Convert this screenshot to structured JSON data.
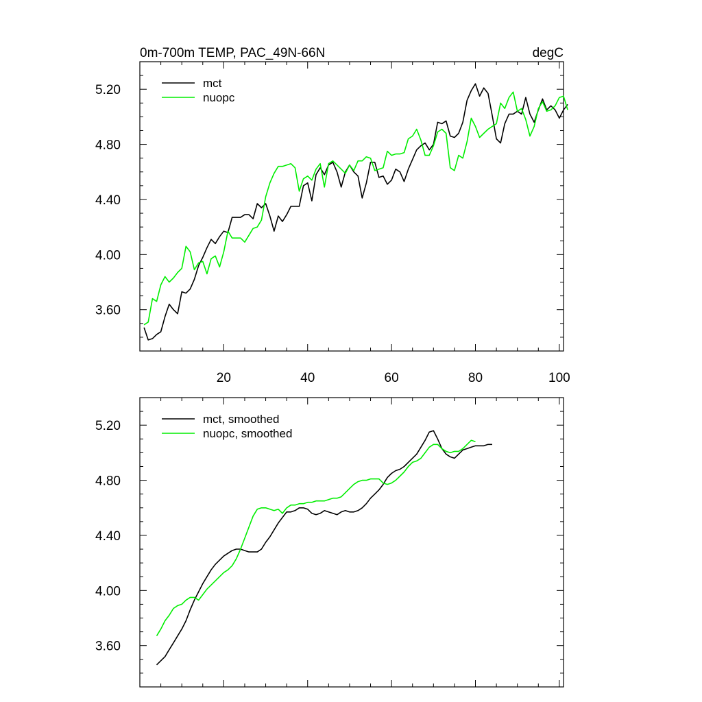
{
  "colors": {
    "mct": "#000000",
    "nuopc": "#00ee00",
    "axis": "#000000",
    "background": "#ffffff"
  },
  "chart_data": [
    {
      "type": "line",
      "title": "0m-700m TEMP, PAC_49N-66N",
      "units": "degC",
      "xlabel": "",
      "ylabel": "",
      "xlim": [
        0,
        101
      ],
      "ylim": [
        3.3,
        5.4
      ],
      "x_ticks": [
        20,
        40,
        60,
        80,
        100
      ],
      "x_tick_labels": [
        "20",
        "40",
        "60",
        "80",
        "100"
      ],
      "y_ticks": [
        3.6,
        4.0,
        4.4,
        4.8,
        5.2
      ],
      "y_tick_labels": [
        "3.60",
        "4.00",
        "4.40",
        "4.80",
        "5.20"
      ],
      "legend_position": "top-left",
      "series": [
        {
          "name": "mct",
          "color_key": "mct",
          "x_start": 1,
          "values": [
            3.47,
            3.38,
            3.39,
            3.42,
            3.44,
            3.55,
            3.64,
            3.6,
            3.57,
            3.73,
            3.72,
            3.75,
            3.82,
            3.92,
            3.98,
            4.05,
            4.11,
            4.08,
            4.13,
            4.17,
            4.16,
            4.27,
            4.27,
            4.27,
            4.29,
            4.29,
            4.26,
            4.37,
            4.34,
            4.37,
            4.28,
            4.17,
            4.28,
            4.24,
            4.29,
            4.35,
            4.35,
            4.35,
            4.5,
            4.52,
            4.39,
            4.58,
            4.63,
            4.58,
            4.65,
            4.67,
            4.6,
            4.49,
            4.6,
            4.65,
            4.6,
            4.57,
            4.41,
            4.52,
            4.67,
            4.67,
            4.56,
            4.57,
            4.51,
            4.54,
            4.62,
            4.6,
            4.53,
            4.62,
            4.69,
            4.76,
            4.79,
            4.81,
            4.76,
            4.8,
            4.96,
            4.95,
            4.97,
            4.86,
            4.85,
            4.88,
            4.96,
            5.12,
            5.19,
            5.24,
            5.15,
            5.21,
            5.17,
            5.01,
            4.84,
            4.81,
            4.95,
            5.02,
            5.02,
            5.04,
            5.02,
            5.14,
            5.02,
            4.96,
            5.05,
            5.13,
            5.05,
            5.08,
            5.05,
            4.99,
            5.05,
            5.09
          ]
        },
        {
          "name": "nuopc",
          "color_key": "nuopc",
          "x_start": 1,
          "values": [
            3.49,
            3.51,
            3.68,
            3.66,
            3.78,
            3.84,
            3.8,
            3.83,
            3.87,
            3.9,
            4.06,
            4.02,
            3.89,
            3.94,
            3.95,
            3.86,
            3.97,
            3.99,
            3.91,
            4.02,
            4.17,
            4.12,
            4.12,
            4.12,
            4.09,
            4.14,
            4.19,
            4.2,
            4.25,
            4.42,
            4.52,
            4.59,
            4.64,
            4.64,
            4.65,
            4.66,
            4.63,
            4.46,
            4.55,
            4.57,
            4.54,
            4.62,
            4.66,
            4.49,
            4.66,
            4.68,
            4.65,
            4.62,
            4.59,
            4.65,
            4.61,
            4.68,
            4.68,
            4.71,
            4.7,
            4.61,
            4.62,
            4.63,
            4.75,
            4.72,
            4.73,
            4.73,
            4.74,
            4.84,
            4.86,
            4.91,
            4.83,
            4.72,
            4.72,
            4.79,
            4.89,
            4.91,
            4.88,
            4.63,
            4.61,
            4.72,
            4.7,
            4.82,
            4.99,
            4.93,
            4.85,
            4.88,
            4.91,
            4.93,
            4.95,
            5.1,
            5.06,
            5.14,
            5.18,
            5.04,
            5.06,
            4.98,
            4.86,
            4.93,
            5.06,
            5.11,
            5.04,
            5.05,
            5.08,
            5.14,
            5.15,
            5.05
          ]
        }
      ]
    },
    {
      "type": "line",
      "title": "",
      "xlim": [
        0,
        101
      ],
      "ylim": [
        3.3,
        5.4
      ],
      "y_ticks": [
        3.6,
        4.0,
        4.4,
        4.8,
        5.2
      ],
      "y_tick_labels": [
        "3.60",
        "4.00",
        "4.40",
        "4.80",
        "5.20"
      ],
      "legend_position": "top-left",
      "series": [
        {
          "name": "mct, smoothed",
          "color_key": "mct",
          "x_start": 4,
          "values": [
            3.46,
            3.49,
            3.52,
            3.57,
            3.62,
            3.67,
            3.72,
            3.78,
            3.86,
            3.93,
            3.99,
            4.05,
            4.1,
            4.15,
            4.19,
            4.22,
            4.25,
            4.27,
            4.29,
            4.3,
            4.3,
            4.29,
            4.28,
            4.28,
            4.28,
            4.3,
            4.35,
            4.39,
            4.44,
            4.49,
            4.53,
            4.57,
            4.57,
            4.58,
            4.6,
            4.6,
            4.59,
            4.56,
            4.55,
            4.56,
            4.58,
            4.57,
            4.56,
            4.55,
            4.57,
            4.58,
            4.57,
            4.57,
            4.58,
            4.6,
            4.63,
            4.67,
            4.7,
            4.73,
            4.77,
            4.82,
            4.85,
            4.87,
            4.88,
            4.9,
            4.93,
            4.96,
            4.99,
            5.04,
            5.09,
            5.15,
            5.16,
            5.1,
            5.03,
            4.99,
            4.97,
            4.96,
            4.99,
            5.02,
            5.03,
            5.04,
            5.05,
            5.05,
            5.05,
            5.06,
            5.06
          ]
        },
        {
          "name": "nuopc, smoothed",
          "color_key": "nuopc",
          "x_start": 4,
          "values": [
            3.67,
            3.72,
            3.78,
            3.82,
            3.87,
            3.89,
            3.9,
            3.93,
            3.95,
            3.95,
            3.93,
            3.97,
            4.01,
            4.04,
            4.07,
            4.1,
            4.13,
            4.15,
            4.18,
            4.23,
            4.3,
            4.38,
            4.46,
            4.54,
            4.59,
            4.6,
            4.6,
            4.59,
            4.58,
            4.59,
            4.56,
            4.6,
            4.62,
            4.62,
            4.63,
            4.63,
            4.64,
            4.64,
            4.65,
            4.65,
            4.65,
            4.66,
            4.67,
            4.67,
            4.68,
            4.71,
            4.74,
            4.77,
            4.79,
            4.8,
            4.8,
            4.81,
            4.81,
            4.81,
            4.78,
            4.77,
            4.78,
            4.8,
            4.83,
            4.86,
            4.9,
            4.93,
            4.94,
            4.96,
            5.0,
            5.04,
            5.06,
            5.06,
            5.03,
            5.01,
            5.0,
            5.01,
            5.01,
            5.03,
            5.06,
            5.09,
            5.08
          ]
        }
      ]
    }
  ]
}
